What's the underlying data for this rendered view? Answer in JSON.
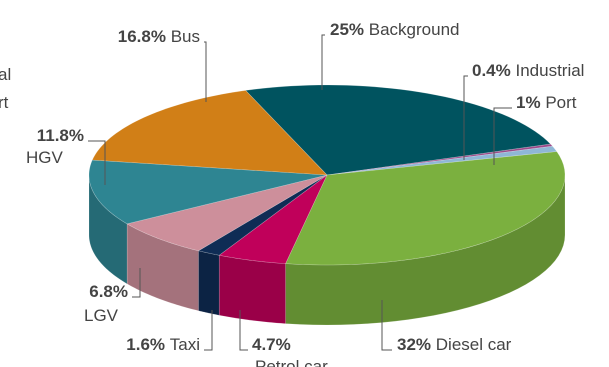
{
  "chart_data": {
    "type": "pie3d",
    "categories": [
      "Background",
      "Industrial",
      "Port",
      "Diesel car",
      "Petrol car",
      "Taxi",
      "LGV",
      "HGV",
      "Bus"
    ],
    "values": [
      25,
      0.4,
      1,
      32,
      4.7,
      1.6,
      6.8,
      11.8,
      16.8
    ],
    "value_labels": [
      "25%",
      "0.4%",
      "1%",
      "32%",
      "4.7%",
      "1.6%",
      "6.8%",
      "11.8%",
      "16.8%"
    ],
    "colors": [
      "#00535f",
      "#9c4a8a",
      "#8fb7d6",
      "#7bb03f",
      "#c0005a",
      "#0f2c55",
      "#cd8f9b",
      "#2e8592",
      "#d17f17"
    ],
    "annotations": [
      "al",
      "rt"
    ]
  }
}
